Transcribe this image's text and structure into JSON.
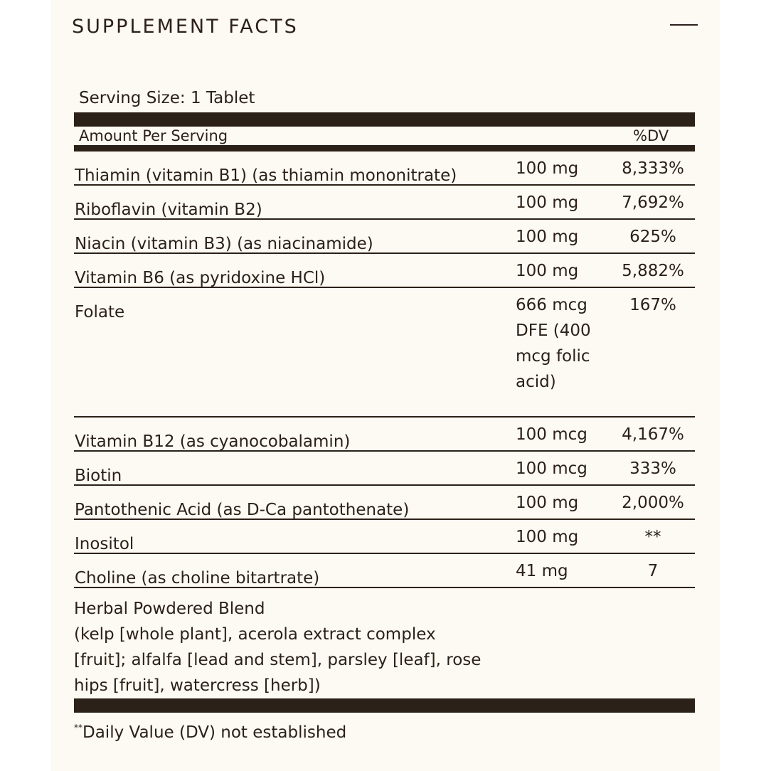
{
  "title": "SUPPLEMENT FACTS",
  "collapse_icon": "minus-icon",
  "serving_size": "Serving Size: 1 Tablet",
  "header": {
    "amount_per_serving": "Amount Per Serving",
    "dv": "%DV"
  },
  "rows": [
    {
      "name": "Thiamin (vitamin B1) (as thiamin mononitrate)",
      "amount": "100 mg",
      "dv": "8,333%"
    },
    {
      "name": "Riboflavin (vitamin B2)",
      "amount": "100 mg",
      "dv": "7,692%"
    },
    {
      "name": "Niacin (vitamin B3) (as niacinamide)",
      "amount": "100 mg",
      "dv": "625%"
    },
    {
      "name": "Vitamin B6 (as pyridoxine HCl)",
      "amount": "100 mg",
      "dv": "5,882%"
    },
    {
      "name": "Folate",
      "amount": "666 mcg DFE (400 mcg folic acid)",
      "dv": "167%"
    },
    {
      "name": "Vitamin B12 (as cyanocobalamin)",
      "amount": "100 mcg",
      "dv": "4,167%"
    },
    {
      "name": "Biotin",
      "amount": "100 mcg",
      "dv": "333%"
    },
    {
      "name": "Pantothenic Acid (as D-Ca pantothenate)",
      "amount": "100 mg",
      "dv": "2,000%"
    },
    {
      "name": "Inositol",
      "amount": "100 mg",
      "dv": "**"
    },
    {
      "name": "Choline (as choline bitartrate)",
      "amount": "41 mg",
      "dv": "7"
    }
  ],
  "blend": {
    "name": "Herbal Powdered Blend",
    "description": "(kelp [whole plant], acerola extract complex [fruit]; alfalfa [lead and stem], parsley [leaf], rose hips [fruit], watercress [herb])"
  },
  "footnote": {
    "mark": "**",
    "text": "Daily Value (DV) not established"
  }
}
